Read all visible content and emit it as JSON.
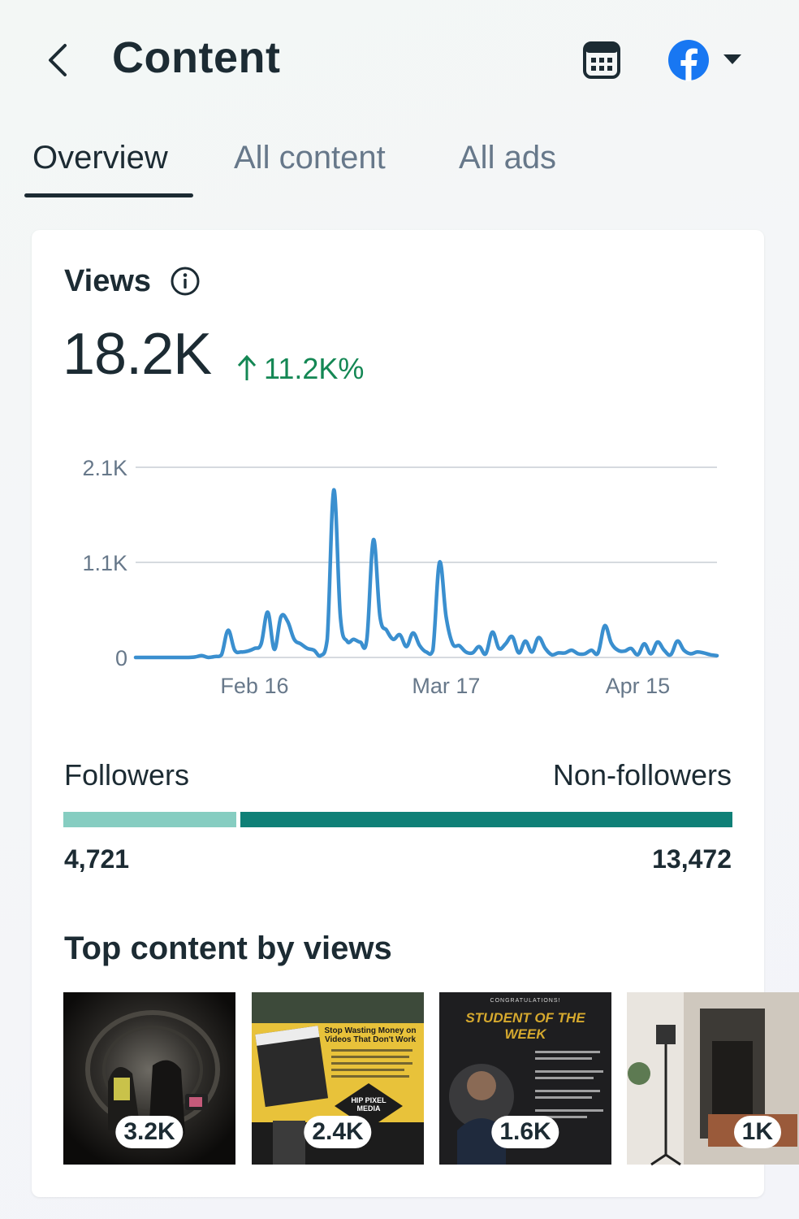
{
  "header": {
    "title": "Content",
    "icons": {
      "back": "chevron-left-icon",
      "calendar": "calendar-icon",
      "platform": "facebook-icon",
      "dropdown": "caret-down-icon"
    }
  },
  "tabs": [
    {
      "label": "Overview",
      "active": true
    },
    {
      "label": "All content",
      "active": false
    },
    {
      "label": "All ads",
      "active": false
    }
  ],
  "views": {
    "label": "Views",
    "total": "18.2K",
    "change": "11.2K%",
    "change_color": "#148754",
    "line_color": "#3a8fcf"
  },
  "chart_data": {
    "type": "line",
    "ylim": [
      0,
      2100
    ],
    "y_ticks": [
      {
        "value": 0,
        "label": "0"
      },
      {
        "value": 1050,
        "label": "1.1K"
      },
      {
        "value": 2100,
        "label": "2.1K"
      }
    ],
    "x_ticks": [
      {
        "index": 18,
        "label": "Feb 16"
      },
      {
        "index": 47,
        "label": "Mar 17"
      },
      {
        "index": 76,
        "label": "Apr 15"
      }
    ],
    "grid": true,
    "series": [
      {
        "values": [
          0,
          0,
          0,
          0,
          0,
          0,
          0,
          0,
          0,
          5,
          20,
          0,
          10,
          30,
          300,
          80,
          60,
          70,
          100,
          150,
          500,
          90,
          450,
          400,
          200,
          150,
          100,
          80,
          20,
          200,
          1850,
          450,
          180,
          200,
          170,
          200,
          1300,
          450,
          300,
          200,
          250,
          120,
          270,
          130,
          60,
          80,
          1050,
          450,
          150,
          130,
          60,
          50,
          120,
          40,
          280,
          100,
          150,
          230,
          50,
          180,
          60,
          220,
          100,
          30,
          50,
          50,
          80,
          40,
          40,
          80,
          50,
          350,
          160,
          80,
          70,
          100,
          30,
          150,
          40,
          170,
          80,
          30,
          180,
          80,
          40,
          60,
          50,
          30,
          20
        ]
      }
    ]
  },
  "audience": {
    "followers_label": "Followers",
    "nonfollowers_label": "Non-followers",
    "followers_count": "4,721",
    "nonfollowers_count": "13,472",
    "followers_value": 4721,
    "nonfollowers_value": 13472,
    "followers_color": "#86cdc1",
    "nonfollowers_color": "#0f8077"
  },
  "top_content": {
    "title": "Top content by views",
    "items": [
      {
        "views": "3.2K"
      },
      {
        "views": "2.4K",
        "poster_heading": "Stop Wasting Money on Videos That Don't Work",
        "poster_brand": "HIP PIXEL MEDIA"
      },
      {
        "views": "1.6K",
        "poster_kicker": "CONGRATULATIONS!",
        "poster_heading": "STUDENT OF THE WEEK"
      },
      {
        "views": "1K"
      }
    ]
  }
}
